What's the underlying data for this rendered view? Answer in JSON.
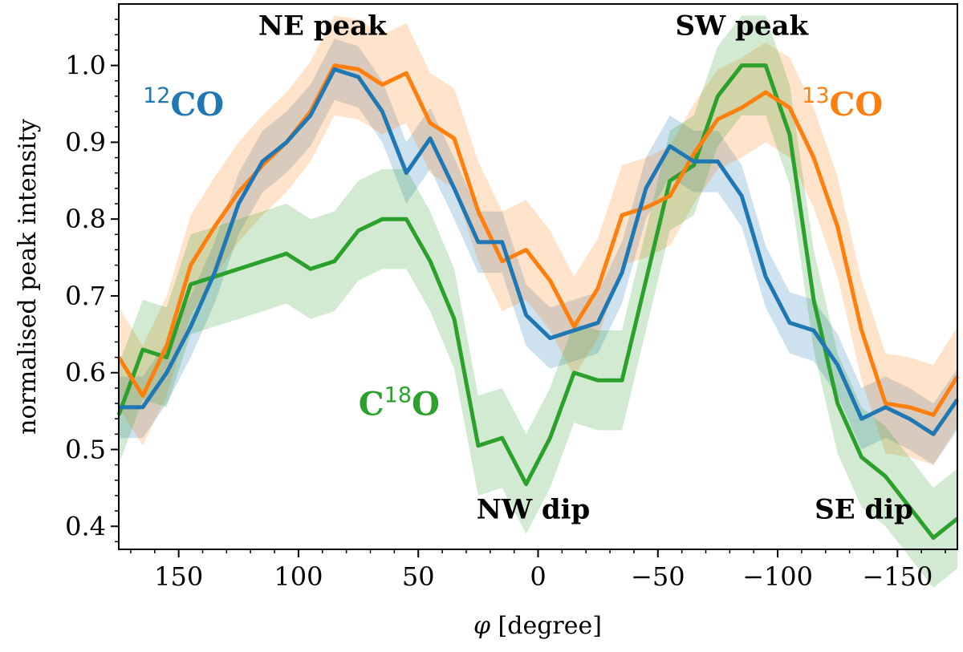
{
  "chart_data": {
    "type": "line",
    "title": "",
    "xlabel": "φ [degree]",
    "xlabel_symbol": "φ",
    "xlabel_unit": " [degree]",
    "ylabel": "normalised peak intensity",
    "xlim": [
      175,
      -175
    ],
    "ylim": [
      0.37,
      1.08
    ],
    "x_ticks": [
      150,
      100,
      50,
      0,
      -50,
      -100,
      -150
    ],
    "x_tick_labels": [
      "150",
      "100",
      "50",
      "0",
      "−50",
      "−100",
      "−150"
    ],
    "y_ticks": [
      0.4,
      0.5,
      0.6,
      0.7,
      0.8,
      0.9,
      1.0
    ],
    "y_tick_labels": [
      "0.4",
      "0.5",
      "0.6",
      "0.7",
      "0.8",
      "0.9",
      "1.0"
    ],
    "grid": false,
    "x": [
      175,
      165,
      155,
      145,
      135,
      125,
      115,
      105,
      95,
      85,
      75,
      65,
      55,
      45,
      35,
      25,
      15,
      5,
      -5,
      -15,
      -25,
      -35,
      -45,
      -55,
      -65,
      -75,
      -85,
      -95,
      -105,
      -115,
      -125,
      -135,
      -145,
      -155,
      -165,
      -175
    ],
    "series": [
      {
        "name": "12CO",
        "color": "#1f77b4",
        "values": [
          0.555,
          0.555,
          0.6,
          0.66,
          0.73,
          0.82,
          0.875,
          0.9,
          0.935,
          0.995,
          0.985,
          0.94,
          0.86,
          0.905,
          0.84,
          0.77,
          0.77,
          0.675,
          0.645,
          0.655,
          0.665,
          0.73,
          0.84,
          0.895,
          0.875,
          0.875,
          0.83,
          0.725,
          0.665,
          0.655,
          0.61,
          0.54,
          0.555,
          0.54,
          0.52,
          0.565
        ],
        "band": [
          0.04,
          0.04,
          0.04,
          0.04,
          0.04,
          0.04,
          0.04,
          0.04,
          0.04,
          0.04,
          0.04,
          0.04,
          0.04,
          0.04,
          0.04,
          0.04,
          0.04,
          0.04,
          0.04,
          0.04,
          0.04,
          0.04,
          0.04,
          0.04,
          0.04,
          0.04,
          0.04,
          0.04,
          0.04,
          0.04,
          0.04,
          0.04,
          0.04,
          0.04,
          0.04,
          0.04
        ]
      },
      {
        "name": "13CO",
        "color": "#ff7f0e",
        "values": [
          0.62,
          0.57,
          0.635,
          0.74,
          0.79,
          0.835,
          0.87,
          0.9,
          0.94,
          1.0,
          0.995,
          0.975,
          0.99,
          0.925,
          0.905,
          0.81,
          0.745,
          0.76,
          0.72,
          0.66,
          0.71,
          0.805,
          0.815,
          0.83,
          0.885,
          0.93,
          0.945,
          0.965,
          0.945,
          0.88,
          0.79,
          0.655,
          0.56,
          0.555,
          0.545,
          0.595
        ],
        "band": [
          0.065,
          0.065,
          0.065,
          0.065,
          0.065,
          0.065,
          0.065,
          0.065,
          0.065,
          0.065,
          0.065,
          0.065,
          0.065,
          0.065,
          0.065,
          0.065,
          0.065,
          0.065,
          0.065,
          0.065,
          0.065,
          0.065,
          0.065,
          0.065,
          0.065,
          0.065,
          0.065,
          0.065,
          0.065,
          0.065,
          0.065,
          0.065,
          0.065,
          0.065,
          0.065,
          0.065
        ]
      },
      {
        "name": "C18O",
        "color": "#2ca02c",
        "values": [
          0.545,
          0.63,
          0.62,
          0.715,
          0.725,
          0.735,
          0.745,
          0.755,
          0.735,
          0.745,
          0.785,
          0.8,
          0.8,
          0.745,
          0.67,
          0.505,
          0.515,
          0.455,
          0.515,
          0.6,
          0.59,
          0.59,
          0.72,
          0.85,
          0.87,
          0.96,
          1.0,
          1.0,
          0.91,
          0.695,
          0.56,
          0.49,
          0.465,
          0.425,
          0.385,
          0.41
        ],
        "band": [
          0.065,
          0.065,
          0.065,
          0.065,
          0.065,
          0.065,
          0.065,
          0.065,
          0.065,
          0.065,
          0.065,
          0.065,
          0.065,
          0.065,
          0.065,
          0.065,
          0.065,
          0.065,
          0.065,
          0.065,
          0.065,
          0.065,
          0.065,
          0.065,
          0.065,
          0.065,
          0.065,
          0.065,
          0.065,
          0.065,
          0.065,
          0.065,
          0.065,
          0.065,
          0.065,
          0.065
        ]
      }
    ],
    "annotations": [
      {
        "id": "ne-peak",
        "text": "NE peak",
        "x": 90,
        "y": 1.04
      },
      {
        "id": "sw-peak",
        "text": "SW peak",
        "x": -85,
        "y": 1.04
      },
      {
        "id": "nw-dip",
        "text": "NW dip",
        "x": 2,
        "y": 0.41
      },
      {
        "id": "se-dip",
        "text": "SE dip",
        "x": -136,
        "y": 0.41
      }
    ],
    "series_labels": [
      {
        "id": "12co",
        "sup": "12",
        "text": "CO",
        "color": "#1f77b4",
        "x": 148,
        "y": 0.935
      },
      {
        "id": "13co",
        "sup": "13",
        "text": "CO",
        "color": "#ff7f0e",
        "x": -127,
        "y": 0.935
      },
      {
        "id": "c18o",
        "prefix": "C",
        "sup": "18",
        "text": "O",
        "color": "#2ca02c",
        "x": 58,
        "y": 0.545
      }
    ]
  }
}
